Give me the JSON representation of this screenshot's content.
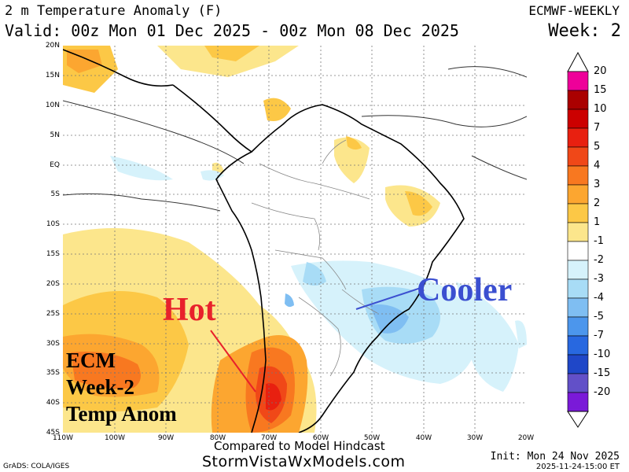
{
  "header": {
    "title": "2 m Temperature Anomaly (F)",
    "valid": "Valid: 00z Mon 01 Dec 2025 - 00z Mon 08 Dec 2025",
    "model": "ECMWF-WEEKLY",
    "week": "Week: 2"
  },
  "map": {
    "lat_labels": [
      "20N",
      "15N",
      "10N",
      "5N",
      "EQ",
      "5S",
      "10S",
      "15S",
      "20S",
      "25S",
      "30S",
      "35S",
      "40S",
      "45S"
    ],
    "lon_labels": [
      "110W",
      "100W",
      "90W",
      "80W",
      "70W",
      "60W",
      "50W",
      "40W",
      "30W",
      "20W"
    ],
    "extent": {
      "lon": [
        -110,
        -20
      ],
      "lat": [
        -45,
        20
      ]
    }
  },
  "annotations": {
    "hot": "Hot",
    "cooler": "Cooler",
    "label_lines": [
      "ECM",
      "Week-2",
      "Temp Anom"
    ]
  },
  "legend": {
    "values": [
      "20",
      "15",
      "10",
      "7",
      "5",
      "4",
      "3",
      "2",
      "1",
      "-1",
      "-2",
      "-3",
      "-4",
      "-5",
      "-7",
      "-10",
      "-15",
      "-20"
    ],
    "colors": [
      "#ee0099",
      "#aa0000",
      "#cc0000",
      "#e82010",
      "#f04818",
      "#f87820",
      "#fca630",
      "#fcc846",
      "#fce68c",
      "#ffffff",
      "#d6f2fb",
      "#a8dcf6",
      "#7fbef2",
      "#4c96ec",
      "#2868e0",
      "#1f47c8",
      "#6250c8",
      "#7a1ad8"
    ]
  },
  "footer": {
    "compared": "Compared to Model Hindcast",
    "site": "StormVistaWxModels.com",
    "grads": "GrADS: COLA/IGES",
    "init": "Init: Mon 24 Nov 2025",
    "timestamp": "2025-11-24-15:00 ET"
  }
}
